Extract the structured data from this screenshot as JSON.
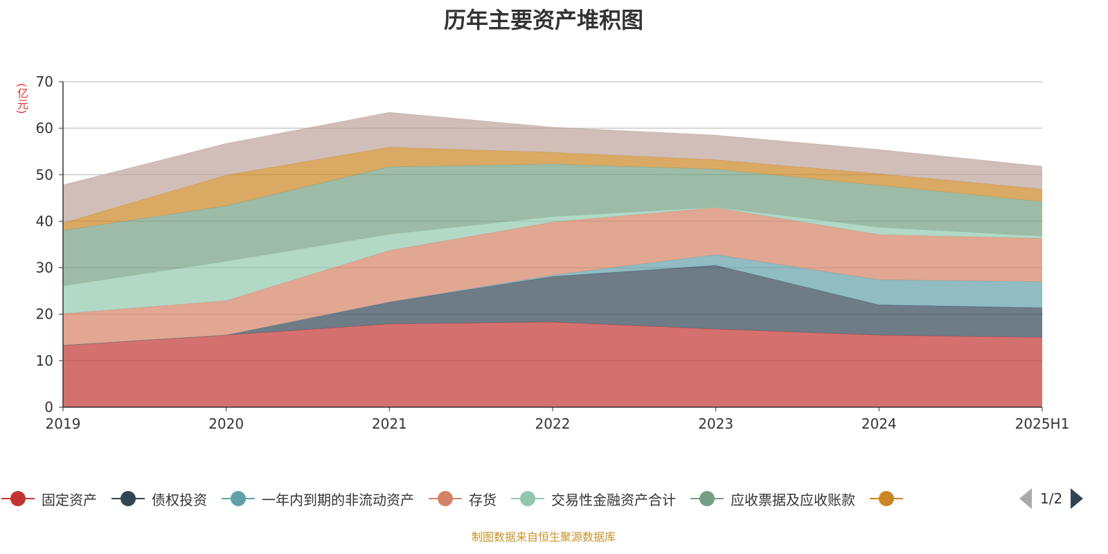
{
  "chart_data": {
    "type": "area",
    "stacked": true,
    "title": "历年主要资产堆积图",
    "ylabel": "(亿元)",
    "ylim": [
      0,
      70
    ],
    "yticks": [
      0,
      10,
      20,
      30,
      40,
      50,
      60,
      70
    ],
    "grid": true,
    "legend_placement": "bottom",
    "categories": [
      "2019",
      "2020",
      "2021",
      "2022",
      "2023",
      "2024",
      "2025H1"
    ],
    "series": [
      {
        "name": "固定资产",
        "color": "#c23531",
        "values": [
          13.3,
          15.5,
          17.9,
          18.3,
          16.8,
          15.5,
          15.0
        ]
      },
      {
        "name": "债权投资",
        "color": "#2f4554",
        "values": [
          0,
          0,
          4.7,
          9.8,
          13.7,
          6.5,
          6.4
        ]
      },
      {
        "name": "一年内到期的非流动资产",
        "color": "#61a0a8",
        "values": [
          0,
          0,
          0,
          0.3,
          2.3,
          5.4,
          5.6
        ]
      },
      {
        "name": "存货",
        "color": "#d48265",
        "values": [
          6.8,
          7.4,
          11.1,
          11.4,
          10.1,
          9.7,
          9.3
        ]
      },
      {
        "name": "交易性金融资产合计",
        "color": "#91c7ae",
        "values": [
          6.0,
          8.5,
          3.5,
          1.2,
          0.1,
          1.6,
          0.5
        ]
      },
      {
        "name": "应收票据及应收账款",
        "color": "#749f83",
        "values": [
          11.9,
          11.9,
          14.5,
          11.3,
          8.2,
          9.0,
          7.4
        ]
      },
      {
        "color": "#ca8622",
        "values": [
          1.6,
          6.6,
          4.2,
          2.5,
          2.0,
          2.5,
          2.7
        ]
      },
      {
        "color": "#bda29a",
        "values": [
          8.2,
          6.8,
          7.5,
          5.4,
          5.3,
          5.2,
          4.9
        ]
      }
    ]
  },
  "legend": {
    "page": "1/2",
    "visible_count": 7
  },
  "footer": "制图数据来自恒生聚源数据库"
}
